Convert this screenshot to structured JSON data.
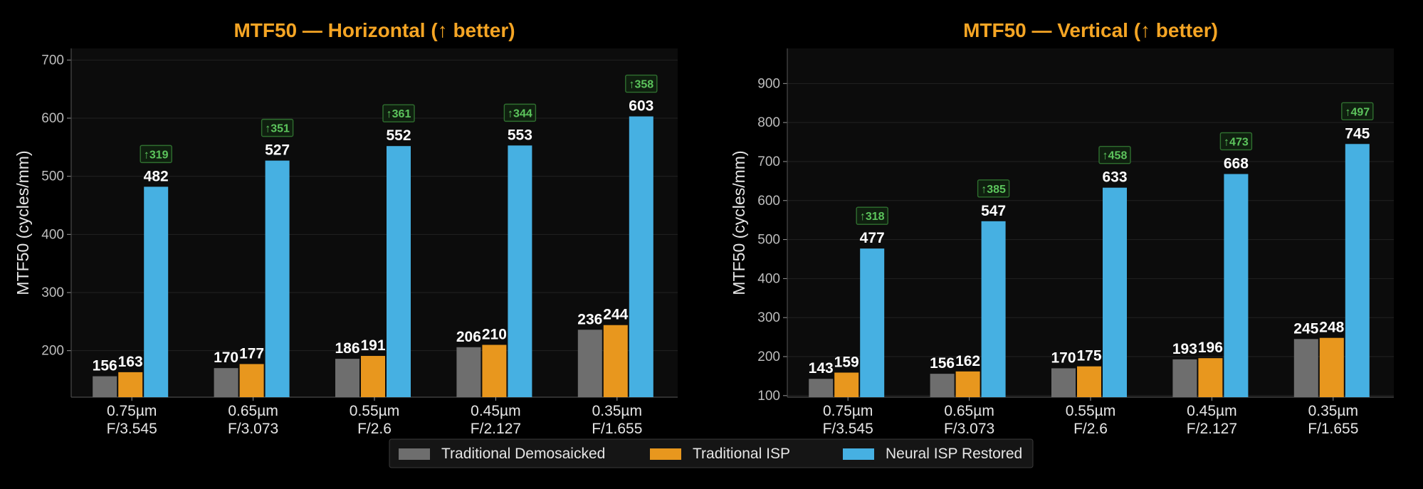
{
  "colors": {
    "background": "#000000",
    "plot_background": "#0c0c0c",
    "grid": "#222222",
    "title": "#f5a524",
    "text": "#e6e6e6",
    "value_label": "#ffffff",
    "delta": "#5cc45c",
    "delta_box": "#2f6f2f",
    "series": [
      "#6e6e6e",
      "#e8971e",
      "#46b0e2"
    ]
  },
  "legend": {
    "items": [
      "Traditional Demosaicked",
      "Traditional ISP",
      "Neural ISP Restored"
    ]
  },
  "chart_data": [
    {
      "type": "bar",
      "title": "MTF50 — Horizontal  (↑ better)",
      "xlabel": "",
      "ylabel": "MTF50 (cycles/mm)",
      "ylim": [
        120,
        720
      ],
      "yticks": [
        200,
        300,
        400,
        500,
        600,
        700
      ],
      "grid": true,
      "categories": [
        [
          "0.75µm",
          "F/3.545"
        ],
        [
          "0.65µm",
          "F/3.073"
        ],
        [
          "0.55µm",
          "F/2.6"
        ],
        [
          "0.45µm",
          "F/2.127"
        ],
        [
          "0.35µm",
          "F/1.655"
        ]
      ],
      "series": [
        {
          "name": "Traditional Demosaicked",
          "values": [
            156,
            170,
            186,
            206,
            236
          ]
        },
        {
          "name": "Traditional ISP",
          "values": [
            163,
            177,
            191,
            210,
            244
          ]
        },
        {
          "name": "Neural ISP Restored",
          "values": [
            482,
            527,
            552,
            553,
            603
          ]
        }
      ],
      "deltas": [
        "↑319",
        "↑351",
        "↑361",
        "↑344",
        "↑358"
      ]
    },
    {
      "type": "bar",
      "title": "MTF50 — Vertical  (↑ better)",
      "xlabel": "",
      "ylabel": "MTF50 (cycles/mm)",
      "ylim": [
        96,
        990
      ],
      "yticks": [
        100,
        200,
        300,
        400,
        500,
        600,
        700,
        800,
        900
      ],
      "grid": true,
      "categories": [
        [
          "0.75µm",
          "F/3.545"
        ],
        [
          "0.65µm",
          "F/3.073"
        ],
        [
          "0.55µm",
          "F/2.6"
        ],
        [
          "0.45µm",
          "F/2.127"
        ],
        [
          "0.35µm",
          "F/1.655"
        ]
      ],
      "series": [
        {
          "name": "Traditional Demosaicked",
          "values": [
            143,
            156,
            170,
            193,
            245
          ]
        },
        {
          "name": "Traditional ISP",
          "values": [
            159,
            162,
            175,
            196,
            248
          ]
        },
        {
          "name": "Neural ISP Restored",
          "values": [
            477,
            547,
            633,
            668,
            745
          ]
        }
      ],
      "deltas": [
        "↑318",
        "↑385",
        "↑458",
        "↑473",
        "↑497"
      ]
    }
  ]
}
